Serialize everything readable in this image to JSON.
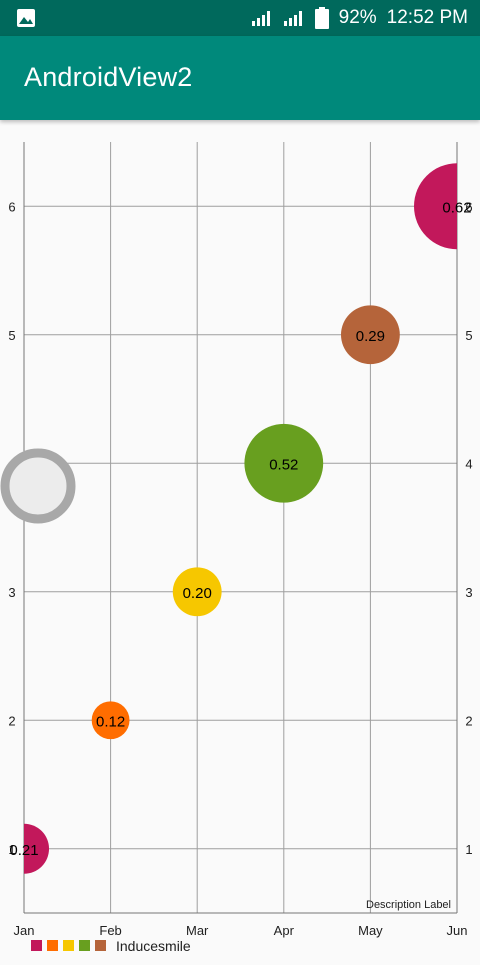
{
  "status_bar": {
    "battery": "92%",
    "time": "12:52 PM",
    "icons": [
      "image-icon",
      "wifi-signal-icon",
      "cell-signal-icon",
      "battery-icon"
    ]
  },
  "app_bar": {
    "title": "AndroidView2",
    "color": "#00897b"
  },
  "chart_data": {
    "type": "scatter",
    "chart_style": "bubble",
    "categories": [
      "Jan",
      "Feb",
      "Mar",
      "Apr",
      "May",
      "Jun"
    ],
    "y_ticks": [
      "1",
      "2",
      "3",
      "4",
      "5",
      "6"
    ],
    "ylim": [
      0.5,
      6.5
    ],
    "grid": true,
    "series": [
      {
        "name": "Inducesmile",
        "points": [
          {
            "x": "Jan",
            "y": 1,
            "size": 0.21,
            "label": "0.21",
            "color": "#c2185b"
          },
          {
            "x": "Feb",
            "y": 2,
            "size": 0.12,
            "label": "0.12",
            "color": "#ff6d00"
          },
          {
            "x": "Mar",
            "y": 3,
            "size": 0.2,
            "label": "0.20",
            "color": "#f6c700"
          },
          {
            "x": "Apr",
            "y": 4,
            "size": 0.52,
            "label": "0.52",
            "color": "#689f1f"
          },
          {
            "x": "May",
            "y": 5,
            "size": 0.29,
            "label": "0.29",
            "color": "#b5643a"
          },
          {
            "x": "Jun",
            "y": 6,
            "size": 0.62,
            "label": "0.62",
            "color": "#c2185b"
          }
        ]
      }
    ],
    "legend": {
      "placement": "bottom-left",
      "colors": [
        "#c2185b",
        "#ff6d00",
        "#f6c700",
        "#689f1f",
        "#b5643a"
      ],
      "label": "Inducesmile"
    },
    "description": "Description Label"
  }
}
